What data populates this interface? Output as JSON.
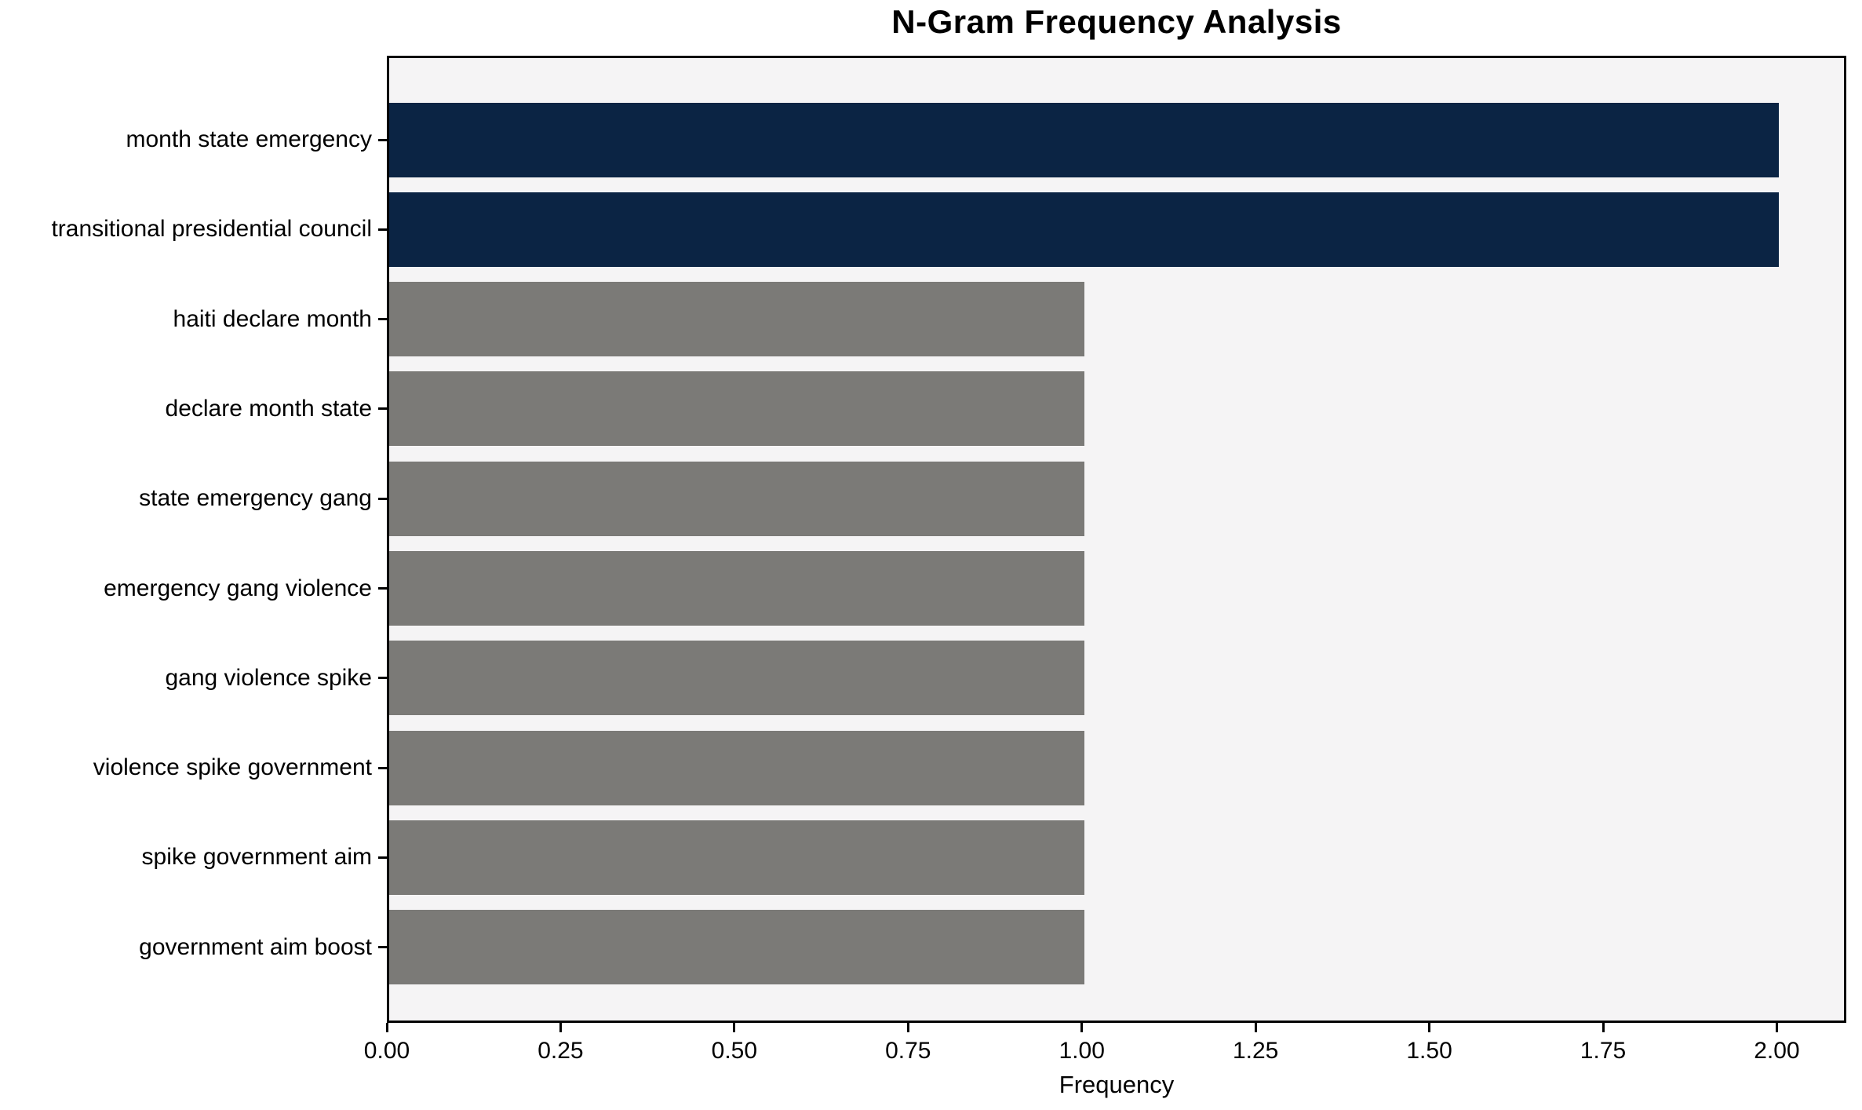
{
  "chart_data": {
    "type": "bar",
    "orientation": "horizontal",
    "title": "N-Gram Frequency Analysis",
    "xlabel": "Frequency",
    "ylabel": "",
    "categories": [
      "month state emergency",
      "transitional presidential council",
      "haiti declare month",
      "declare month state",
      "state emergency gang",
      "emergency gang violence",
      "gang violence spike",
      "violence spike government",
      "spike government aim",
      "government aim boost"
    ],
    "values": [
      2,
      2,
      1,
      1,
      1,
      1,
      1,
      1,
      1,
      1
    ],
    "bar_colors": [
      "#0b2444",
      "#0b2444",
      "#7b7a77",
      "#7b7a77",
      "#7b7a77",
      "#7b7a77",
      "#7b7a77",
      "#7b7a77",
      "#7b7a77",
      "#7b7a77"
    ],
    "xlim": [
      0,
      2.1
    ],
    "xtick_labels": [
      "0.00",
      "0.25",
      "0.50",
      "0.75",
      "1.00",
      "1.25",
      "1.50",
      "1.75",
      "2.00"
    ],
    "xtick_values": [
      0,
      0.25,
      0.5,
      0.75,
      1.0,
      1.25,
      1.5,
      1.75,
      2.0
    ],
    "legend": null,
    "grid": false,
    "colors": {
      "highlight": "#0b2444",
      "default_bar": "#7b7a77",
      "plot_background": "#f5f4f5",
      "figure_background": "#ffffff",
      "spine": "#000000",
      "text": "#000000"
    }
  }
}
